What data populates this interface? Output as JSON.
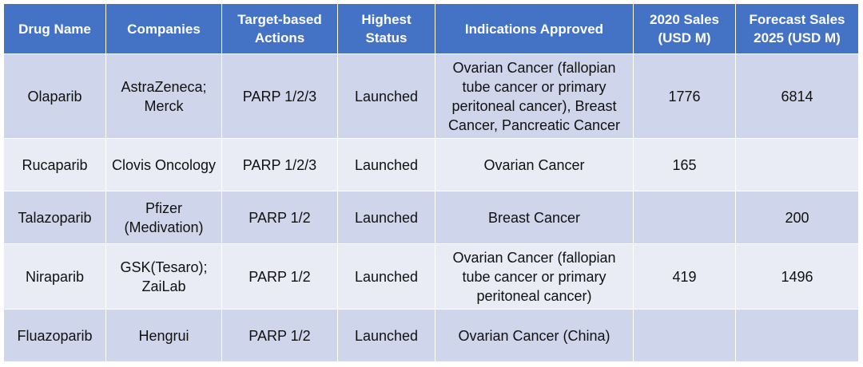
{
  "chart_data": {
    "type": "table",
    "columns": [
      "Drug Name",
      "Companies",
      "Target-based Actions",
      "Highest Status",
      "Indications Approved",
      "2020 Sales (USD M)",
      "Forecast Sales 2025 (USD M)"
    ],
    "rows": [
      [
        "Olaparib",
        "AstraZeneca; Merck",
        "PARP 1/2/3",
        "Launched",
        "Ovarian Cancer (fallopian tube cancer or primary peritoneal cancer), Breast Cancer, Pancreatic Cancer",
        "1776",
        "6814"
      ],
      [
        "Rucaparib",
        "Clovis Oncology",
        "PARP 1/2/3",
        "Launched",
        "Ovarian Cancer",
        "165",
        ""
      ],
      [
        "Talazoparib",
        "Pfizer (Medivation)",
        "PARP 1/2",
        "Launched",
        "Breast Cancer",
        "",
        "200"
      ],
      [
        "Niraparib",
        "GSK(Tesaro); ZaiLab",
        "PARP 1/2",
        "Launched",
        "Ovarian Cancer (fallopian tube cancer or primary peritoneal cancer)",
        "419",
        "1496"
      ],
      [
        "Fluazoparib",
        "Hengrui",
        "PARP 1/2",
        "Launched",
        "Ovarian Cancer (China)",
        "",
        ""
      ]
    ]
  },
  "colors": {
    "header_bg": "#4472c4",
    "header_text": "#ffffff",
    "row_odd_bg": "#cfd5ea",
    "row_even_bg": "#e9ebf5",
    "body_text": "#111111"
  }
}
